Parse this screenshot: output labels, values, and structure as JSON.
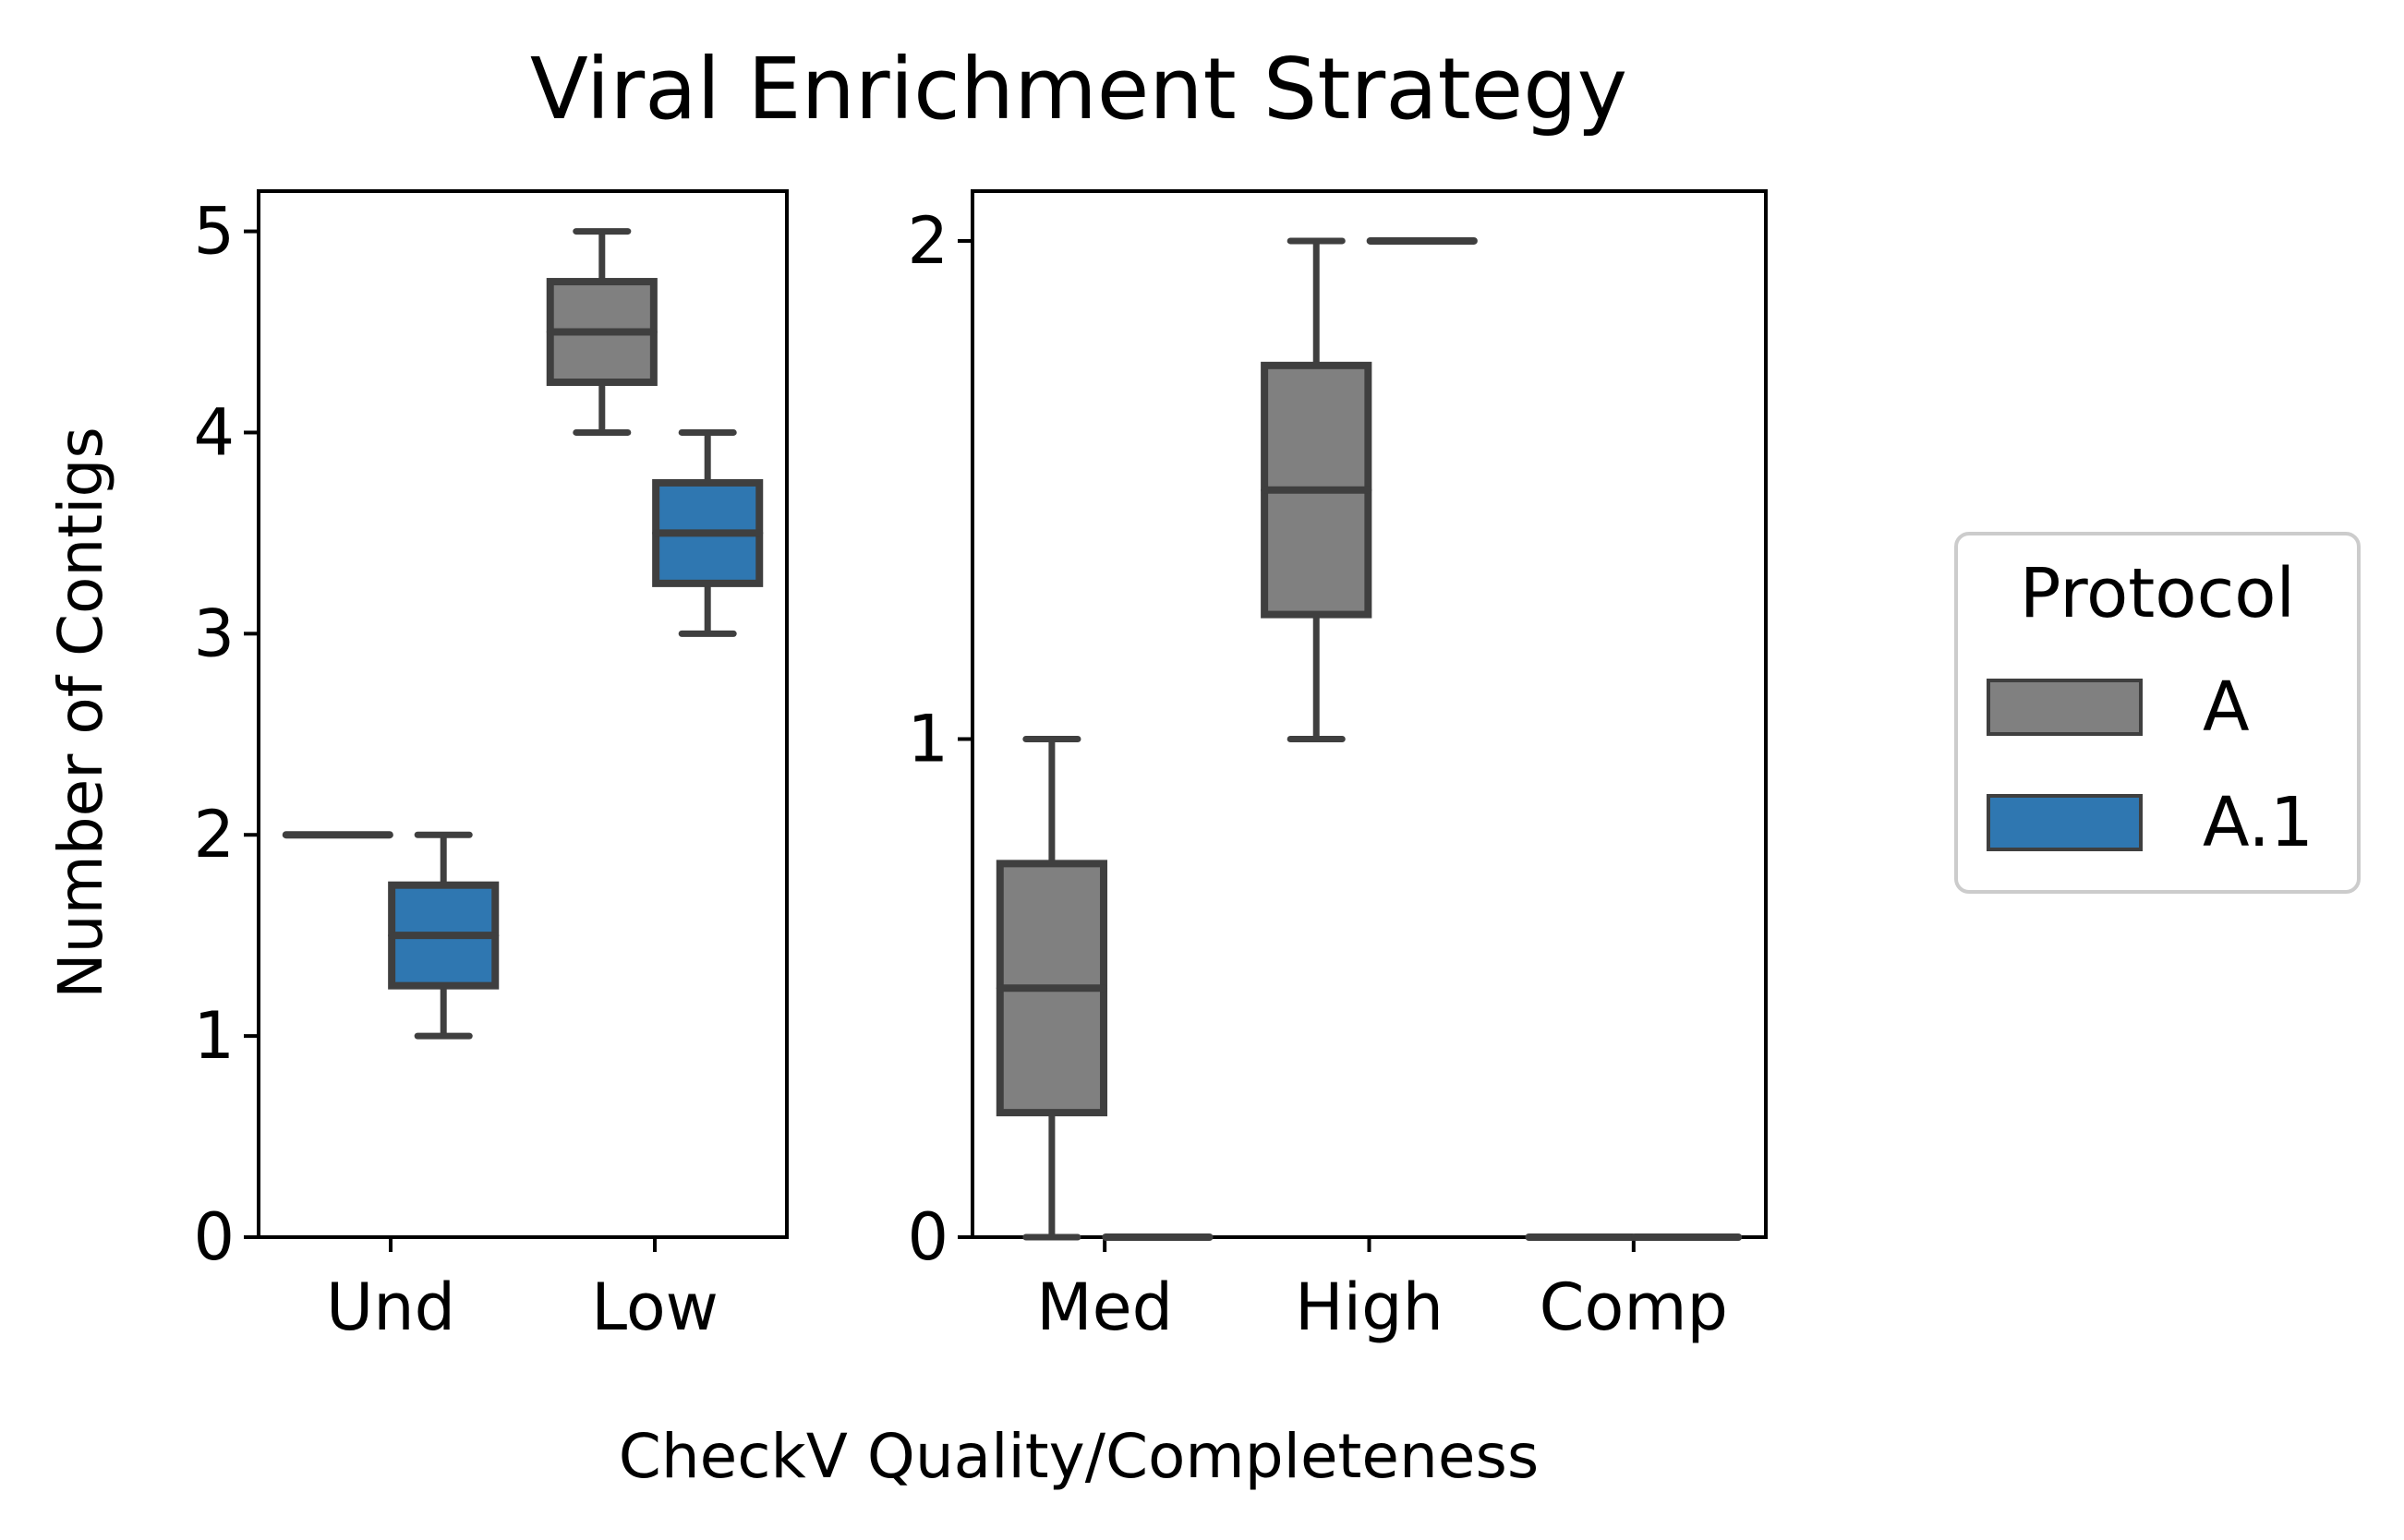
{
  "chart_data": {
    "type": "box",
    "title": "Viral Enrichment Strategy",
    "xlabel": "CheckV Quality/Completeness",
    "ylabel": "Number of Contigs",
    "legend": {
      "title": "Protocol",
      "placement": "right",
      "entries": [
        {
          "name": "A",
          "color": "#808080"
        },
        {
          "name": "A.1",
          "color": "#2f77b1"
        }
      ]
    },
    "box_edge_color": "#3f3f3f",
    "panels": [
      {
        "categories": [
          "Und",
          "Low"
        ],
        "ylim": [
          0,
          5.2
        ],
        "yticks": [
          0,
          1,
          2,
          3,
          4,
          5
        ],
        "series": [
          {
            "name": "A",
            "boxes": [
              {
                "category": "Und",
                "min": 2,
                "q1": 2,
                "median": 2,
                "q3": 2,
                "max": 2
              },
              {
                "category": "Low",
                "min": 4,
                "q1": 4.25,
                "median": 4.5,
                "q3": 4.75,
                "max": 5
              }
            ]
          },
          {
            "name": "A.1",
            "boxes": [
              {
                "category": "Und",
                "min": 1,
                "q1": 1.25,
                "median": 1.5,
                "q3": 1.75,
                "max": 2
              },
              {
                "category": "Low",
                "min": 3,
                "q1": 3.25,
                "median": 3.5,
                "q3": 3.75,
                "max": 4
              }
            ]
          }
        ]
      },
      {
        "categories": [
          "Med",
          "High",
          "Comp"
        ],
        "ylim": [
          0,
          2.1
        ],
        "yticks": [
          0,
          1,
          2
        ],
        "series": [
          {
            "name": "A",
            "boxes": [
              {
                "category": "Med",
                "min": 0,
                "q1": 0.25,
                "median": 0.5,
                "q3": 0.75,
                "max": 1
              },
              {
                "category": "High",
                "min": 1,
                "q1": 1.25,
                "median": 1.5,
                "q3": 1.75,
                "max": 2
              },
              {
                "category": "Comp",
                "min": 0,
                "q1": 0,
                "median": 0,
                "q3": 0,
                "max": 0
              }
            ]
          },
          {
            "name": "A.1",
            "boxes": [
              {
                "category": "Med",
                "min": 0,
                "q1": 0,
                "median": 0,
                "q3": 0,
                "max": 0
              },
              {
                "category": "High",
                "min": 2,
                "q1": 2,
                "median": 2,
                "q3": 2,
                "max": 2
              },
              {
                "category": "Comp",
                "min": 0,
                "q1": 0,
                "median": 0,
                "q3": 0,
                "max": 0
              }
            ]
          }
        ]
      }
    ]
  }
}
